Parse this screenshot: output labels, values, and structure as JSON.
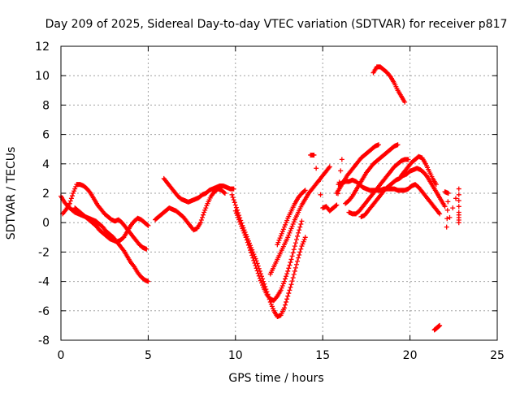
{
  "chart_data": {
    "type": "scatter",
    "title": "Day 209 of 2025, Sidereal Day-to-day VTEC variation (SDTVAR) for receiver p817",
    "xlabel": "GPS time / hours",
    "ylabel": "SDTVAR / TECUs",
    "xlim": [
      0,
      25
    ],
    "ylim": [
      -8,
      12
    ],
    "xticks": [
      0,
      5,
      10,
      15,
      20,
      25
    ],
    "yticks": [
      -8,
      -6,
      -4,
      -2,
      0,
      2,
      4,
      6,
      8,
      10,
      12
    ],
    "grid": true,
    "marker": "plus",
    "color": "#ff0000",
    "series": [
      {
        "name": "track-01",
        "x": [
          0.0,
          0.2,
          0.4,
          0.6,
          0.8,
          1.0,
          1.2,
          1.4,
          1.6,
          1.8,
          2.0,
          2.2,
          2.4,
          2.6,
          2.8,
          3.0,
          3.2,
          3.4,
          3.6,
          3.8,
          4.0,
          4.2,
          4.4,
          4.6,
          4.8,
          5.0
        ],
        "y": [
          1.8,
          1.4,
          1.1,
          0.9,
          0.7,
          0.6,
          0.5,
          0.4,
          0.3,
          0.2,
          0.1,
          -0.1,
          -0.3,
          -0.6,
          -0.8,
          -1.0,
          -1.3,
          -1.6,
          -1.9,
          -2.3,
          -2.7,
          -3.0,
          -3.4,
          -3.7,
          -3.9,
          -4.0
        ]
      },
      {
        "name": "track-02",
        "x": [
          0.1,
          0.3,
          0.5,
          0.7,
          0.9,
          1.1,
          1.3,
          1.5,
          1.7,
          1.9,
          2.1,
          2.3,
          2.5,
          2.7,
          2.9,
          3.1,
          3.3,
          3.5,
          3.7,
          3.9,
          4.1,
          4.3,
          4.5,
          4.7,
          4.9
        ],
        "y": [
          0.6,
          0.9,
          1.3,
          2.0,
          2.6,
          2.6,
          2.5,
          2.3,
          2.0,
          1.6,
          1.2,
          0.9,
          0.6,
          0.4,
          0.2,
          0.1,
          0.2,
          0.0,
          -0.3,
          -0.6,
          -0.9,
          -1.2,
          -1.5,
          -1.7,
          -1.8
        ]
      },
      {
        "name": "track-03",
        "x": [
          0.8,
          1.0,
          1.2,
          1.4,
          1.6,
          1.8,
          2.0,
          2.2,
          2.4,
          2.6,
          2.8,
          3.0,
          3.2,
          3.4,
          3.6,
          3.8,
          4.0,
          4.2,
          4.4,
          4.6,
          4.8,
          5.0
        ],
        "y": [
          1.0,
          0.8,
          0.6,
          0.4,
          0.2,
          0.0,
          -0.2,
          -0.5,
          -0.7,
          -0.9,
          -1.1,
          -1.2,
          -1.3,
          -1.2,
          -1.0,
          -0.6,
          -0.2,
          0.1,
          0.3,
          0.2,
          0.0,
          -0.2
        ]
      },
      {
        "name": "track-04",
        "x": [
          5.9,
          6.1,
          6.3,
          6.5,
          6.7,
          6.9,
          7.1,
          7.3,
          7.5,
          7.7,
          7.9,
          8.1,
          8.3,
          8.5,
          8.7,
          8.9,
          9.1,
          9.3,
          9.5,
          9.7,
          9.9
        ],
        "y": [
          3.0,
          2.7,
          2.4,
          2.1,
          1.8,
          1.6,
          1.5,
          1.4,
          1.5,
          1.6,
          1.7,
          1.9,
          2.0,
          2.2,
          2.3,
          2.4,
          2.5,
          2.5,
          2.4,
          2.3,
          2.3
        ]
      },
      {
        "name": "track-05",
        "x": [
          5.4,
          5.6,
          5.8,
          6.0,
          6.2,
          6.4,
          6.6,
          6.8,
          7.0,
          7.2,
          7.4,
          7.6,
          7.8,
          8.0,
          8.2,
          8.4,
          8.6,
          8.8,
          9.0,
          9.2,
          9.4
        ],
        "y": [
          0.2,
          0.4,
          0.6,
          0.8,
          1.0,
          0.9,
          0.8,
          0.6,
          0.4,
          0.1,
          -0.2,
          -0.5,
          -0.4,
          0.0,
          0.7,
          1.3,
          1.8,
          2.1,
          2.3,
          2.2,
          2.0
        ]
      },
      {
        "name": "track-06",
        "x": [
          9.8,
          10.0,
          10.2,
          10.4,
          10.6,
          10.8,
          11.0,
          11.2,
          11.4,
          11.6,
          11.8,
          12.0,
          12.2,
          12.4,
          12.6,
          12.8,
          13.0,
          13.2,
          13.4,
          13.6,
          13.8,
          14.0
        ],
        "y": [
          1.9,
          1.2,
          0.5,
          -0.2,
          -0.8,
          -1.4,
          -2.0,
          -2.6,
          -3.3,
          -4.0,
          -4.7,
          -5.4,
          -6.0,
          -6.4,
          -6.3,
          -5.8,
          -5.0,
          -4.2,
          -3.3,
          -2.4,
          -1.6,
          -1.0
        ]
      },
      {
        "name": "track-07",
        "x": [
          10.0,
          10.2,
          10.4,
          10.6,
          10.8,
          11.0,
          11.2,
          11.4,
          11.6,
          11.8,
          12.0,
          12.2,
          12.4,
          12.6,
          12.8,
          13.0,
          13.2,
          13.4,
          13.6,
          13.8
        ],
        "y": [
          0.8,
          0.2,
          -0.4,
          -1.0,
          -1.7,
          -2.4,
          -3.1,
          -3.8,
          -4.4,
          -4.9,
          -5.2,
          -5.3,
          -5.0,
          -4.6,
          -4.0,
          -3.3,
          -2.5,
          -1.6,
          -0.7,
          0.1
        ]
      },
      {
        "name": "track-08",
        "x": [
          12.0,
          12.2,
          12.4,
          12.6,
          12.8,
          13.0,
          13.2,
          13.4,
          13.6,
          13.8,
          14.0,
          14.2,
          14.4,
          14.6,
          14.8,
          15.0,
          15.2,
          15.4
        ],
        "y": [
          -3.5,
          -3.0,
          -2.5,
          -2.0,
          -1.5,
          -1.0,
          -0.4,
          0.2,
          0.7,
          1.2,
          1.6,
          2.0,
          2.3,
          2.6,
          2.9,
          3.2,
          3.5,
          3.8
        ]
      },
      {
        "name": "track-09",
        "x": [
          12.4,
          12.6,
          12.8,
          13.0,
          13.2,
          13.4,
          13.6,
          13.8,
          14.0
        ],
        "y": [
          -1.5,
          -0.9,
          -0.3,
          0.3,
          0.8,
          1.3,
          1.7,
          2.0,
          2.2
        ]
      },
      {
        "name": "track-10",
        "x": [
          14.3,
          14.5,
          15.0,
          15.2,
          15.4,
          15.6,
          15.8,
          16.1
        ],
        "y": [
          4.6,
          4.6,
          1.0,
          1.1,
          0.8,
          1.0,
          1.2,
          4.3
        ]
      },
      {
        "name": "track-11",
        "x": [
          15.9,
          16.1,
          16.3,
          16.5,
          16.7,
          16.9,
          17.1,
          17.3,
          17.5,
          17.7,
          17.9,
          18.1,
          18.3,
          18.5,
          18.7,
          18.9,
          19.1,
          19.3,
          19.5,
          19.7,
          19.9,
          20.1,
          20.3,
          20.5,
          20.7,
          20.9,
          21.1,
          21.3,
          21.5,
          21.7
        ],
        "y": [
          2.6,
          2.7,
          2.8,
          2.8,
          2.9,
          2.8,
          2.6,
          2.4,
          2.3,
          2.2,
          2.2,
          2.2,
          2.2,
          2.3,
          2.3,
          2.3,
          2.3,
          2.2,
          2.2,
          2.2,
          2.3,
          2.5,
          2.6,
          2.4,
          2.1,
          1.8,
          1.5,
          1.2,
          0.9,
          0.6
        ]
      },
      {
        "name": "track-12",
        "x": [
          15.8,
          16.0,
          16.2,
          16.4,
          16.6,
          16.8,
          17.0,
          17.2,
          17.4,
          17.6,
          17.8,
          18.0,
          18.2
        ],
        "y": [
          2.0,
          2.4,
          2.8,
          3.2,
          3.5,
          3.8,
          4.1,
          4.4,
          4.6,
          4.8,
          5.0,
          5.2,
          5.3
        ]
      },
      {
        "name": "track-13",
        "x": [
          16.3,
          16.5,
          16.7,
          16.9,
          17.1,
          17.3,
          17.5,
          17.7,
          17.9,
          18.1,
          18.3,
          18.5,
          18.7,
          18.9,
          19.1,
          19.3
        ],
        "y": [
          1.3,
          1.5,
          1.8,
          2.2,
          2.6,
          3.0,
          3.4,
          3.7,
          4.0,
          4.2,
          4.4,
          4.6,
          4.8,
          5.0,
          5.2,
          5.3
        ]
      },
      {
        "name": "track-14",
        "x": [
          16.5,
          16.7,
          16.9,
          17.1,
          17.3,
          17.5,
          17.7,
          17.9,
          18.1,
          18.3,
          18.5,
          18.7,
          18.9,
          19.1,
          19.3,
          19.5,
          19.7,
          19.9
        ],
        "y": [
          0.7,
          0.6,
          0.6,
          0.8,
          1.1,
          1.4,
          1.7,
          2.0,
          2.3,
          2.6,
          2.9,
          3.2,
          3.5,
          3.8,
          4.0,
          4.2,
          4.3,
          4.3
        ]
      },
      {
        "name": "track-15",
        "x": [
          17.2,
          17.4,
          17.6,
          17.8,
          18.0,
          18.2,
          18.4,
          18.6,
          18.8,
          19.0,
          19.2,
          19.4,
          19.6,
          19.8,
          20.0,
          20.2,
          20.4,
          20.6,
          20.8,
          21.0,
          21.2,
          21.4,
          21.6,
          21.8,
          22.0
        ],
        "y": [
          0.4,
          0.5,
          0.8,
          1.1,
          1.4,
          1.7,
          2.0,
          2.3,
          2.5,
          2.7,
          2.9,
          3.0,
          3.2,
          3.3,
          3.5,
          3.6,
          3.7,
          3.6,
          3.4,
          3.1,
          2.7,
          2.3,
          1.9,
          1.5,
          1.1
        ]
      },
      {
        "name": "track-16",
        "x": [
          19.5,
          19.7,
          19.9,
          20.1,
          20.3,
          20.5,
          20.7,
          20.9,
          21.1,
          21.3,
          21.5
        ],
        "y": [
          3.2,
          3.5,
          3.8,
          4.1,
          4.3,
          4.5,
          4.4,
          4.0,
          3.5,
          3.0,
          2.6
        ]
      },
      {
        "name": "track-17",
        "x": [
          17.9,
          18.1,
          18.3,
          18.5,
          18.7,
          18.9,
          19.1,
          19.3,
          19.5,
          19.7
        ],
        "y": [
          10.2,
          10.6,
          10.6,
          10.4,
          10.2,
          9.9,
          9.5,
          9.0,
          8.6,
          8.2
        ]
      },
      {
        "name": "track-18",
        "x": [
          21.4,
          21.5,
          21.6,
          21.7
        ],
        "y": [
          -7.3,
          -7.2,
          -7.1,
          -7.0
        ]
      },
      {
        "name": "track-19",
        "x": [
          22.0,
          22.2,
          22.1,
          22.8,
          22.8,
          22.8
        ],
        "y": [
          2.1,
          2.0,
          -0.3,
          2.3,
          0.7,
          0.0
        ]
      }
    ]
  }
}
